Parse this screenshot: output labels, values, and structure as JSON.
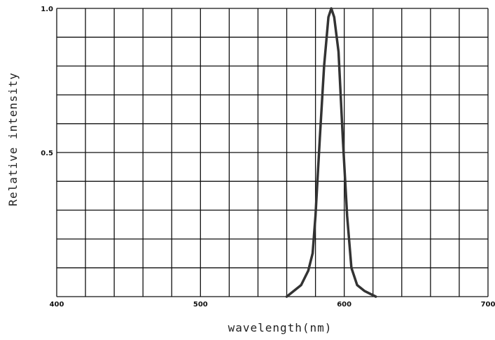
{
  "chart_data": {
    "type": "line",
    "xlabel": "wavelength(nm)",
    "ylabel": "Relative intensity",
    "xlim": [
      400,
      700
    ],
    "ylim": [
      0,
      1.0
    ],
    "x_ticks": [
      "400",
      "500",
      "600",
      "700"
    ],
    "x_tick_values": [
      400,
      500,
      600,
      700
    ],
    "y_ticks": [
      "0.5",
      "1.0"
    ],
    "y_tick_values": [
      0.5,
      1.0
    ],
    "grid": true,
    "grid_x_step": 20,
    "grid_y_step": 0.1,
    "line_color": "#333333",
    "series": [
      {
        "x": [
          560,
          570,
          575,
          578,
          580,
          583,
          586,
          589,
          591,
          593,
          596,
          599,
          602,
          605,
          609,
          614,
          622
        ],
        "y": [
          0.0,
          0.04,
          0.09,
          0.15,
          0.28,
          0.55,
          0.8,
          0.97,
          1.0,
          0.97,
          0.85,
          0.55,
          0.28,
          0.1,
          0.04,
          0.02,
          0.0
        ]
      }
    ]
  }
}
